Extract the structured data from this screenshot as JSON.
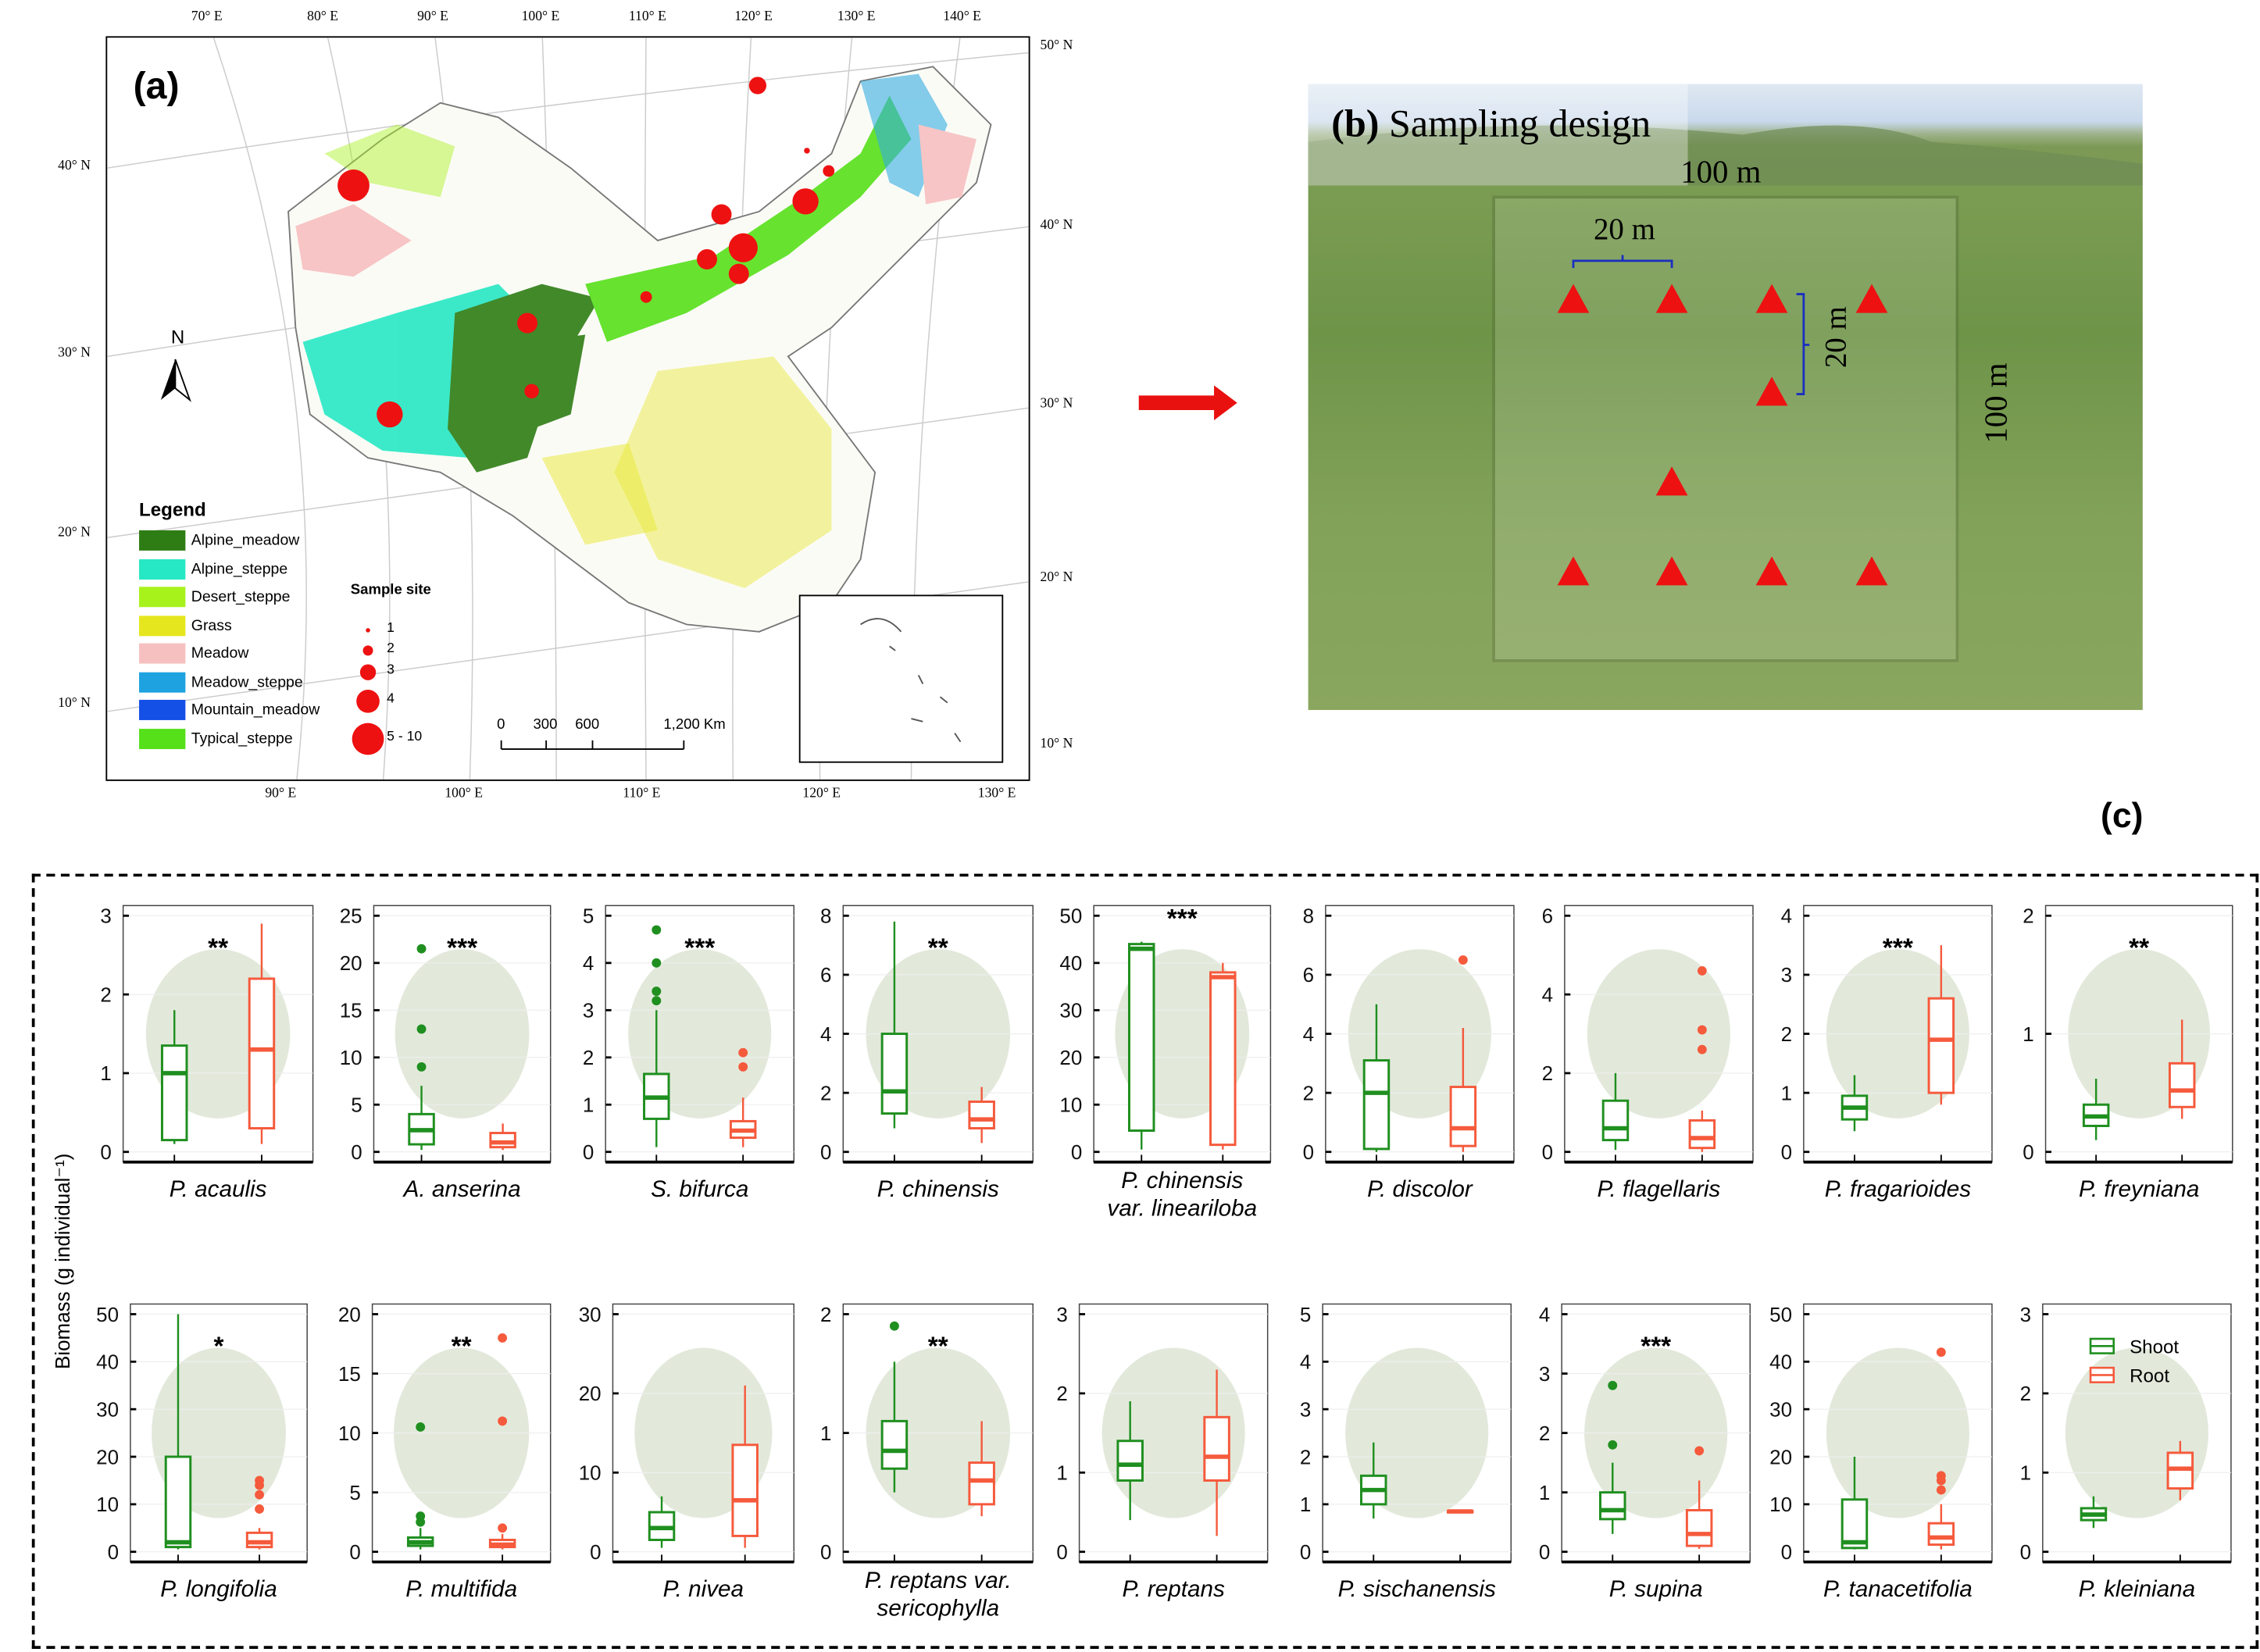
{
  "panel_a": {
    "label": "(a)",
    "top_lon": [
      "70° E",
      "80° E",
      "90° E",
      "100° E",
      "110° E",
      "120° E",
      "130° E",
      "140° E"
    ],
    "bottom_lon": [
      "90° E",
      "100° E",
      "110° E",
      "120° E",
      "130° E"
    ],
    "right_lat": [
      "50° N",
      "40° N",
      "30° N",
      "20° N",
      "10° N"
    ],
    "left_lat": [
      "40° N",
      "30° N",
      "20° N",
      "10° N"
    ],
    "north": "N",
    "legend_title": "Legend",
    "legend": [
      {
        "label": "Alpine_meadow",
        "color": "#2e7d14"
      },
      {
        "label": "Alpine_steppe",
        "color": "#27e8c4"
      },
      {
        "label": "Desert_steppe",
        "color": "#a8f21c"
      },
      {
        "label": "Grass",
        "color": "#e6e61e"
      },
      {
        "label": "Meadow",
        "color": "#f7c0c0"
      },
      {
        "label": "Meadow_steppe",
        "color": "#1ea3e0"
      },
      {
        "label": "Mountain_meadow",
        "color": "#1450e6"
      },
      {
        "label": "Typical_steppe",
        "color": "#56e01a"
      }
    ],
    "sample_title": "Sample site",
    "sample_sizes": [
      "1",
      "2",
      "3",
      "4",
      "5 - 10"
    ],
    "scale_labels": [
      "0",
      "300",
      "600",
      "1,200 Km"
    ],
    "site_color": "#ee1111"
  },
  "panel_b": {
    "label": "(b)",
    "title": "Sampling design",
    "outer_top": "100 m",
    "outer_side": "100 m",
    "inner_h": "20 m",
    "inner_v": "20 m"
  },
  "panel_c": {
    "label": "(c)",
    "ylabel": "Biomass (g individual⁻¹)",
    "legend": [
      "Shoot",
      "Root"
    ],
    "shoot_color": "#1f8f1f",
    "root_color": "#f55a3c"
  },
  "chart_data": {
    "type": "boxplot",
    "series_names": [
      "Shoot",
      "Root"
    ],
    "ylabel": "Biomass (g individual⁻¹)",
    "panels": [
      {
        "name": [
          "P. acaulis"
        ],
        "ylim": [
          0,
          3
        ],
        "ticks": [
          0,
          1,
          2,
          3
        ],
        "sig": "**",
        "shoot": {
          "stats": [
            0.1,
            0.15,
            1.0,
            1.35,
            1.8
          ],
          "outliers": []
        },
        "root": {
          "stats": [
            0.1,
            0.3,
            1.3,
            2.2,
            2.9
          ],
          "outliers": []
        }
      },
      {
        "name": [
          "A. anserina"
        ],
        "ylim": [
          0,
          25
        ],
        "ticks": [
          0,
          5,
          10,
          15,
          20,
          25
        ],
        "sig": "***",
        "shoot": {
          "stats": [
            0.2,
            0.8,
            2.3,
            4,
            7
          ],
          "outliers": [
            9,
            13,
            21.5
          ]
        },
        "root": {
          "stats": [
            0.2,
            0.5,
            1.0,
            2,
            3
          ],
          "outliers": []
        }
      },
      {
        "name": [
          "S. bifurca"
        ],
        "ylim": [
          0,
          5
        ],
        "ticks": [
          0,
          1,
          2,
          3,
          4,
          5
        ],
        "sig": "***",
        "shoot": {
          "stats": [
            0.1,
            0.7,
            1.15,
            1.65,
            3
          ],
          "outliers": [
            3.2,
            3.4,
            4,
            4.7
          ]
        },
        "root": {
          "stats": [
            0.1,
            0.3,
            0.45,
            0.65,
            1.15
          ],
          "outliers": [
            1.8,
            2.1
          ]
        }
      },
      {
        "name": [
          "P. chinensis"
        ],
        "ylim": [
          0,
          8
        ],
        "ticks": [
          0,
          2,
          4,
          6,
          8
        ],
        "sig": "**",
        "shoot": {
          "stats": [
            0.8,
            1.3,
            2.05,
            4,
            7.8
          ],
          "outliers": []
        },
        "root": {
          "stats": [
            0.3,
            0.8,
            1.1,
            1.7,
            2.2
          ],
          "outliers": []
        }
      },
      {
        "name": [
          "P. chinensis",
          "var. lineariloba"
        ],
        "ylim": [
          0,
          50
        ],
        "ticks": [
          0,
          10,
          20,
          30,
          40,
          50
        ],
        "sig": "***",
        "shoot": {
          "stats": [
            0.5,
            4.5,
            43,
            44,
            44.5
          ],
          "outliers": []
        },
        "root": {
          "stats": [
            0.5,
            1.5,
            37,
            38,
            40
          ],
          "outliers": []
        }
      },
      {
        "name": [
          "P. discolor"
        ],
        "ylim": [
          0,
          8
        ],
        "ticks": [
          0,
          2,
          4,
          6,
          8
        ],
        "sig": "",
        "shoot": {
          "stats": [
            0,
            0.1,
            2,
            3.1,
            5
          ],
          "outliers": []
        },
        "root": {
          "stats": [
            0,
            0.2,
            0.8,
            2.2,
            4.2
          ],
          "outliers": [
            6.5
          ]
        }
      },
      {
        "name": [
          "P. flagellaris"
        ],
        "ylim": [
          0,
          6
        ],
        "ticks": [
          0,
          2,
          4,
          6
        ],
        "sig": "",
        "shoot": {
          "stats": [
            0.05,
            0.3,
            0.6,
            1.3,
            2
          ],
          "outliers": []
        },
        "root": {
          "stats": [
            0,
            0.1,
            0.35,
            0.8,
            1.05
          ],
          "outliers": [
            2.6,
            3.1,
            4.6
          ]
        }
      },
      {
        "name": [
          "P. fragarioides"
        ],
        "ylim": [
          0,
          4
        ],
        "ticks": [
          0,
          1,
          2,
          3,
          4
        ],
        "sig": "***",
        "shoot": {
          "stats": [
            0.35,
            0.55,
            0.75,
            0.95,
            1.3
          ],
          "outliers": []
        },
        "root": {
          "stats": [
            0.8,
            1.0,
            1.9,
            2.6,
            3.5
          ],
          "outliers": []
        }
      },
      {
        "name": [
          "P. freyniana"
        ],
        "ylim": [
          0,
          2
        ],
        "ticks": [
          0,
          1,
          2
        ],
        "sig": "**",
        "shoot": {
          "stats": [
            0.1,
            0.22,
            0.3,
            0.4,
            0.62
          ],
          "outliers": []
        },
        "root": {
          "stats": [
            0.28,
            0.38,
            0.52,
            0.75,
            1.12
          ],
          "outliers": []
        }
      },
      {
        "name": [
          "P.  longifolia"
        ],
        "ylim": [
          0,
          50
        ],
        "ticks": [
          0,
          10,
          20,
          30,
          40,
          50
        ],
        "sig": "*",
        "shoot": {
          "stats": [
            0.5,
            1,
            2,
            20,
            50
          ],
          "outliers": []
        },
        "root": {
          "stats": [
            0.5,
            1,
            2,
            4,
            5
          ],
          "outliers": [
            9,
            12,
            14,
            15
          ]
        }
      },
      {
        "name": [
          "P. multifida"
        ],
        "ylim": [
          0,
          25
        ],
        "ticks": [
          0,
          5,
          10,
          15,
          20
        ],
        "sig": "**",
        "shoot": {
          "stats": [
            0.2,
            0.5,
            0.8,
            1.2,
            2
          ],
          "outliers": [
            2.5,
            3,
            10.5
          ]
        },
        "root": {
          "stats": [
            0.2,
            0.4,
            0.6,
            1,
            1.5
          ],
          "outliers": [
            2,
            11,
            18
          ]
        }
      },
      {
        "name": [
          "P. nivea"
        ],
        "ylim": [
          0,
          30
        ],
        "ticks": [
          0,
          10,
          20,
          30
        ],
        "sig": "",
        "shoot": {
          "stats": [
            0.5,
            1.5,
            3,
            5,
            7
          ],
          "outliers": []
        },
        "root": {
          "stats": [
            0.5,
            2,
            6.5,
            13.5,
            21
          ]
        }
      },
      {
        "name": [
          "P. reptans var.",
          "sericophylla"
        ],
        "ylim": [
          0,
          2.2
        ],
        "ticks": [
          0,
          1,
          2
        ],
        "sig": "**",
        "shoot": {
          "stats": [
            0.5,
            0.7,
            0.85,
            1.1,
            1.6
          ],
          "outliers": [
            1.9
          ]
        },
        "root": {
          "stats": [
            0.3,
            0.4,
            0.6,
            0.75,
            1.1
          ],
          "outliers": []
        }
      },
      {
        "name": [
          "P. reptans"
        ],
        "ylim": [
          0,
          3
        ],
        "ticks": [
          0,
          1,
          2,
          3
        ],
        "sig": "",
        "shoot": {
          "stats": [
            0.4,
            0.9,
            1.1,
            1.4,
            1.9
          ],
          "outliers": []
        },
        "root": {
          "stats": [
            0.2,
            0.9,
            1.2,
            1.7,
            2.3
          ],
          "outliers": []
        }
      },
      {
        "name": [
          "P. sischanensis"
        ],
        "ylim": [
          0,
          5
        ],
        "ticks": [
          0,
          1,
          2,
          3,
          4,
          5
        ],
        "sig": "",
        "shoot": {
          "stats": [
            0.7,
            1,
            1.3,
            1.6,
            2.3
          ],
          "outliers": []
        },
        "root": {
          "stats": [
            0.82,
            0.84,
            0.85,
            0.86,
            0.88
          ],
          "outliers": []
        }
      },
      {
        "name": [
          "P.  supina"
        ],
        "ylim": [
          0,
          4
        ],
        "ticks": [
          0,
          1,
          2,
          3,
          4
        ],
        "sig": "***",
        "shoot": {
          "stats": [
            0.3,
            0.55,
            0.7,
            1,
            1.5
          ],
          "outliers": [
            1.8,
            2.8
          ]
        },
        "root": {
          "stats": [
            0.05,
            0.1,
            0.3,
            0.7,
            1.2
          ],
          "outliers": [
            1.7
          ]
        }
      },
      {
        "name": [
          "P. tanacetifolia"
        ],
        "ylim": [
          0,
          50
        ],
        "ticks": [
          0,
          10,
          20,
          30,
          40,
          50
        ],
        "sig": "",
        "shoot": {
          "stats": [
            0.5,
            0.8,
            2,
            11,
            20
          ],
          "outliers": []
        },
        "root": {
          "stats": [
            0.5,
            1.5,
            3,
            6,
            10
          ],
          "outliers": [
            13,
            15,
            16,
            42
          ]
        }
      },
      {
        "name": [
          "P. kleiniana"
        ],
        "ylim": [
          0,
          3
        ],
        "ticks": [
          0,
          1,
          2,
          3
        ],
        "sig": "",
        "shoot": {
          "stats": [
            0.3,
            0.4,
            0.47,
            0.55,
            0.7
          ],
          "outliers": []
        },
        "root": {
          "stats": [
            0.65,
            0.8,
            1.05,
            1.25,
            1.4
          ],
          "outliers": []
        }
      }
    ]
  }
}
